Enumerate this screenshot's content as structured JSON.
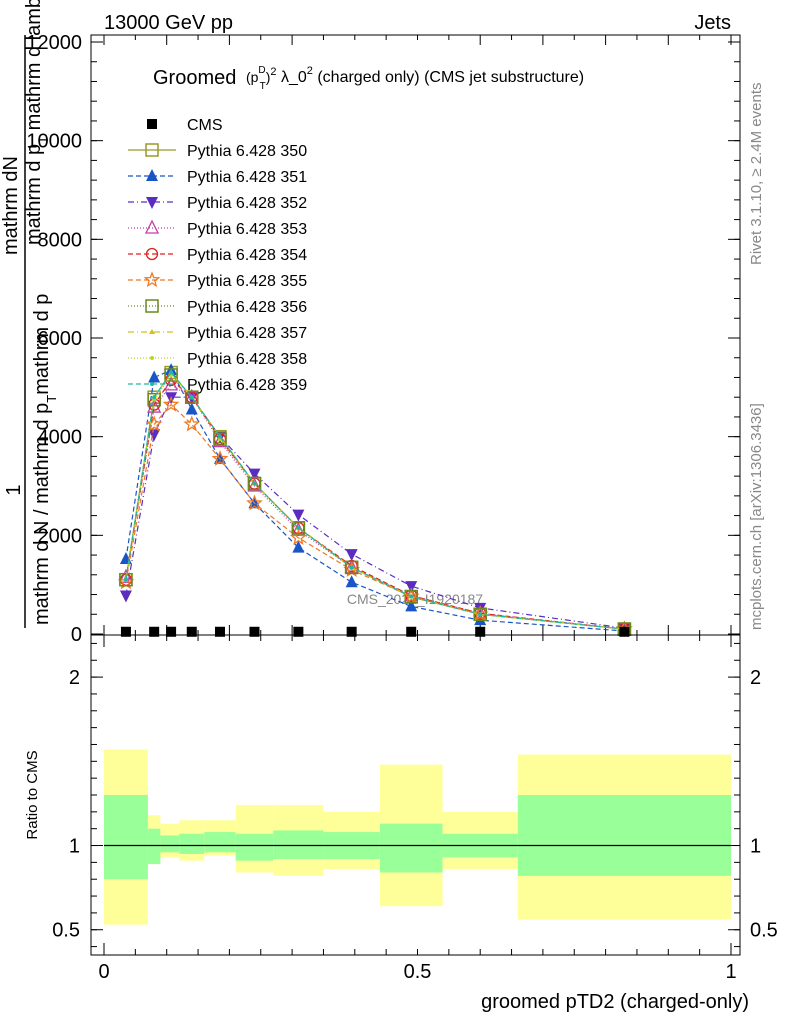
{
  "header": {
    "left": "13000 GeV pp",
    "right": "Jets"
  },
  "side_labels": {
    "rivet": "Rivet 3.1.10, ≥ 2.4M events",
    "mcplots": "mcplots.cern.ch [arXiv:1306.3436]"
  },
  "watermark": "CMS_2021_I1920187",
  "colors": {
    "data": "#000000",
    "band_inner": "#99ff99",
    "band_outer": "#ffff99",
    "ref_line": "#000000"
  },
  "chart_data": [
    {
      "type": "line",
      "title_prefix": "Groomed",
      "title_sup1": "D",
      "title_sub1": "T",
      "title_sup2": "2",
      "title_mid": " λ_0",
      "title_sup3": "2",
      "title_suffix": "  (charged only) (CMS jet substructure)",
      "xlabel": "",
      "ylabel_top": "1",
      "ylabel_numer_top": "mathrm d",
      "ylabel_numer_N": "N",
      "ylabel_numer_mid": "mathrm d p",
      "ylabel_numer_T": "T",
      "ylabel_numer_end": " mathrm d lambda",
      "ylabel_denom": "mathrm d N / mathrm d p",
      "ylabel_denom_T": "T",
      "ylabel_denom_end": "mathrm d p",
      "xlim": [
        -0.02,
        1.0
      ],
      "ylim": [
        0,
        12000
      ],
      "yticks": [
        0,
        2000,
        4000,
        6000,
        8000,
        10000,
        12000
      ],
      "ytick_labels": [
        "0",
        "2000",
        "4000",
        "6000",
        "8000",
        "10000",
        "12000"
      ],
      "x": [
        0.035,
        0.08,
        0.107,
        0.14,
        0.185,
        0.24,
        0.31,
        0.395,
        0.49,
        0.6,
        0.83
      ],
      "data": {
        "name": "CMS",
        "values": [
          25,
          25,
          25,
          25,
          25,
          25,
          25,
          25,
          25,
          25,
          25
        ]
      },
      "series": [
        {
          "name": "Pythia 6.428 350",
          "color": "#9a9a2a",
          "dash": "",
          "marker": "square-open",
          "values": [
            1100,
            4800,
            5300,
            4800,
            4000,
            3050,
            2150,
            1350,
            750,
            400,
            100
          ]
        },
        {
          "name": "Pythia 6.428 351",
          "color": "#1a55c8",
          "dash": "5,3",
          "marker": "triangle-filled",
          "values": [
            1520,
            5200,
            5350,
            4550,
            3550,
            2650,
            1750,
            1050,
            560,
            280,
            60
          ]
        },
        {
          "name": "Pythia 6.428 352",
          "color": "#5a2dc0",
          "dash": "6,3,1,3",
          "marker": "triangle-down-filled",
          "values": [
            780,
            4050,
            4800,
            4800,
            4000,
            3250,
            2420,
            1620,
            970,
            530,
            120
          ]
        },
        {
          "name": "Pythia 6.428 353",
          "color": "#c43da8",
          "dash": "1,2",
          "marker": "triangle-open",
          "values": [
            1150,
            4600,
            5050,
            4800,
            3900,
            3000,
            2100,
            1350,
            780,
            420,
            100
          ]
        },
        {
          "name": "Pythia 6.428 354",
          "color": "#e02020",
          "dash": "5,3",
          "marker": "circle-open",
          "values": [
            1100,
            4650,
            5150,
            4800,
            3950,
            3050,
            2150,
            1380,
            780,
            420,
            100
          ]
        },
        {
          "name": "Pythia 6.428 355",
          "color": "#f07820",
          "dash": "5,3",
          "marker": "star-open",
          "values": [
            1050,
            4250,
            4650,
            4250,
            3550,
            2650,
            1950,
            1300,
            760,
            400,
            100
          ]
        },
        {
          "name": "Pythia 6.428 356",
          "color": "#6a8a1a",
          "dash": "1,2",
          "marker": "square-open",
          "values": [
            1100,
            4750,
            5250,
            4800,
            3950,
            3050,
            2150,
            1350,
            760,
            400,
            100
          ]
        },
        {
          "name": "Pythia 6.428 357",
          "color": "#d0c020",
          "dash": "6,3,1,3",
          "marker": "tri-small",
          "values": [
            1100,
            4800,
            5300,
            4800,
            4000,
            3050,
            2150,
            1350,
            760,
            400,
            100
          ]
        },
        {
          "name": "Pythia 6.428 358",
          "color": "#b8d820",
          "dash": "1,2",
          "marker": "dot",
          "values": [
            1100,
            4750,
            5250,
            4800,
            3950,
            3050,
            2150,
            1350,
            760,
            400,
            100
          ]
        },
        {
          "name": "Pythia 6.428 359",
          "color": "#20b8a0",
          "dash": "5,3",
          "marker": "dot",
          "values": [
            1100,
            4800,
            5300,
            4800,
            4000,
            3050,
            2150,
            1350,
            760,
            400,
            100
          ]
        }
      ]
    },
    {
      "type": "area",
      "ylabel": "Ratio to CMS",
      "xlabel": "groomed pTD2 (charged-only)",
      "xlim": [
        -0.02,
        1.0
      ],
      "ylim": [
        0.35,
        2.25
      ],
      "xticks": [
        0,
        0.5,
        1
      ],
      "xtick_labels": [
        "0",
        "0.5",
        "1"
      ],
      "yticks": [
        0.5,
        1,
        2
      ],
      "ytick_labels": [
        "0.5",
        "1",
        "2"
      ],
      "bins": [
        {
          "lo": 0.0,
          "hi": 0.07,
          "inner": [
            0.8,
            1.3
          ],
          "outer": [
            0.53,
            1.57
          ]
        },
        {
          "lo": 0.07,
          "hi": 0.09,
          "inner": [
            0.89,
            1.1
          ],
          "outer": [
            0.89,
            1.18
          ]
        },
        {
          "lo": 0.09,
          "hi": 0.12,
          "inner": [
            0.96,
            1.06
          ],
          "outer": [
            0.93,
            1.13
          ]
        },
        {
          "lo": 0.12,
          "hi": 0.16,
          "inner": [
            0.95,
            1.07
          ],
          "outer": [
            0.91,
            1.15
          ]
        },
        {
          "lo": 0.16,
          "hi": 0.21,
          "inner": [
            0.96,
            1.08
          ],
          "outer": [
            0.94,
            1.15
          ]
        },
        {
          "lo": 0.21,
          "hi": 0.27,
          "inner": [
            0.91,
            1.07
          ],
          "outer": [
            0.84,
            1.24
          ]
        },
        {
          "lo": 0.27,
          "hi": 0.35,
          "inner": [
            0.92,
            1.09
          ],
          "outer": [
            0.82,
            1.24
          ]
        },
        {
          "lo": 0.35,
          "hi": 0.44,
          "inner": [
            0.92,
            1.08
          ],
          "outer": [
            0.86,
            1.2
          ]
        },
        {
          "lo": 0.44,
          "hi": 0.54,
          "inner": [
            0.84,
            1.13
          ],
          "outer": [
            0.64,
            1.48
          ]
        },
        {
          "lo": 0.54,
          "hi": 0.66,
          "inner": [
            0.93,
            1.07
          ],
          "outer": [
            0.86,
            1.2
          ]
        },
        {
          "lo": 0.66,
          "hi": 1.0,
          "inner": [
            0.82,
            1.3
          ],
          "outer": [
            0.56,
            1.54
          ]
        }
      ],
      "reference": 1.0
    }
  ]
}
